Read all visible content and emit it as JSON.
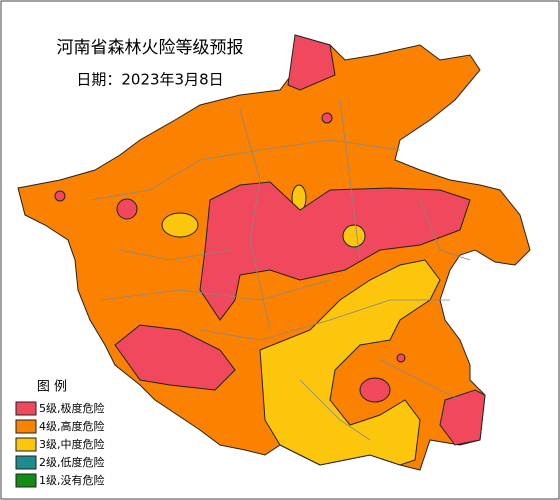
{
  "title": "河南省森林火险等级预报",
  "date": "日期：2023年3月8日",
  "legend": {
    "title": "图 例",
    "items": [
      {
        "label": "5级,极度危险",
        "color": "#f0485c"
      },
      {
        "label": "4级,高度危险",
        "color": "#fa8200"
      },
      {
        "label": "3级,中度危险",
        "color": "#fcc60c"
      },
      {
        "label": "2级,低度危险",
        "color": "#1c8c8c"
      },
      {
        "label": "1级,没有危险",
        "color": "#128c12"
      }
    ]
  }
}
